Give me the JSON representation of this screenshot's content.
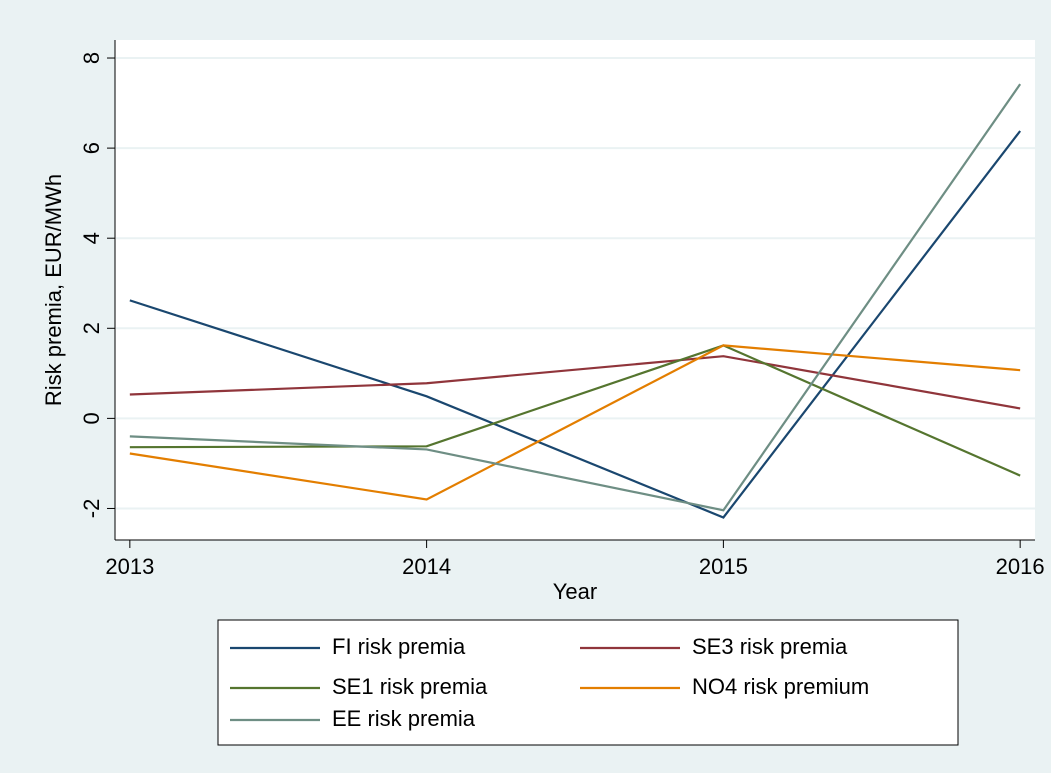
{
  "chart_data": {
    "type": "line",
    "x_label": "Year",
    "y_label": "Risk premia, EUR/MWh",
    "x": [
      2013,
      2014,
      2015,
      2016
    ],
    "xlim": [
      2012.95,
      2016.05
    ],
    "xticks": [
      2013,
      2014,
      2015,
      2016
    ],
    "ylim": [
      -2.7,
      8.4
    ],
    "yticks": [
      -2,
      0,
      2,
      4,
      6,
      8
    ],
    "grid": true,
    "legend": "bottom",
    "series": [
      {
        "name": "FI risk premia",
        "color": "#1a476f",
        "values": [
          2.62,
          0.49,
          -2.2,
          6.38
        ]
      },
      {
        "name": "SE3 risk premia",
        "color": "#90353b",
        "values": [
          0.53,
          0.78,
          1.38,
          0.22
        ]
      },
      {
        "name": "SE1 risk premia",
        "color": "#55752f",
        "values": [
          -0.64,
          -0.62,
          1.62,
          -1.27
        ]
      },
      {
        "name": "NO4 risk premium",
        "color": "#e37e00",
        "values": [
          -0.78,
          -1.8,
          1.62,
          1.07
        ]
      },
      {
        "name": "EE risk premia",
        "color": "#6e8e84",
        "values": [
          -0.4,
          -0.69,
          -2.04,
          7.42
        ]
      }
    ]
  }
}
